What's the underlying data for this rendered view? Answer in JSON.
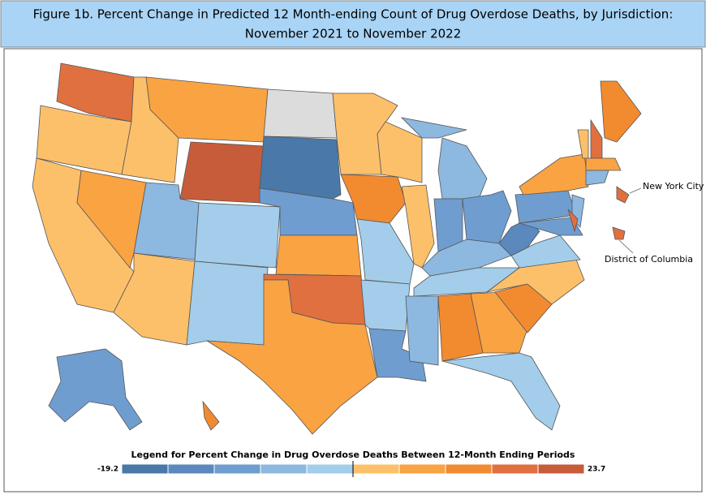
{
  "title_lines": [
    "Figure 1b. Percent Change in Predicted 12 Month-ending Count of Drug Overdose Deaths, by Jurisdiction:",
    "November 2021 to November 2022"
  ],
  "annotations": [
    "New York City",
    "District of Columbia"
  ],
  "legend": {
    "title": "Legend for Percent Change in Drug Overdose Deaths Between 12-Month Ending Periods",
    "min": -19.2,
    "max": 23.7,
    "colors": [
      "#4a78a8",
      "#5b88bd",
      "#6f9dd0",
      "#8db8e0",
      "#a3cdea",
      "#fdc06a",
      "#f9a343",
      "#f28a30",
      "#e07040",
      "#c75c3a"
    ]
  },
  "region_colors": [
    "#e07040",
    "#fdc06a",
    "#fdc06a",
    "#f9a343",
    "#fdc06a",
    "#f9a343",
    "#c75c3a",
    "#8db8e0",
    "#a3cdea",
    "#fdc06a",
    "#a3cdea",
    "#dcdcdc",
    "#4a78a8",
    "#6f9dd0",
    "#f9a343",
    "#e07040",
    "#f9a343",
    "#fdc06a",
    "#f28a30",
    "#a3cdea",
    "#a3cdea",
    "#6f9dd0",
    "#fdc06a",
    "#fdc06a",
    "#8db8e0",
    "#8db8e0",
    "#6f9dd0",
    "#6f9dd0",
    "#8db8e0",
    "#a3cdea",
    "#8db8e0",
    "#f28a30",
    "#f9a343",
    "#a3cdea",
    "#f28a30",
    "#fdc06a",
    "#a3cdea",
    "#5b88bd",
    "#6f9dd0",
    "#f9a343",
    "#8db8e0",
    "#6f9dd0",
    "#e07040",
    "#fdc06a",
    "#e07040",
    "#f28a30",
    "#f9a343",
    "#8db8e0",
    "#6f9dd0",
    "#f28a30",
    "#e07040",
    "#e07040"
  ]
}
